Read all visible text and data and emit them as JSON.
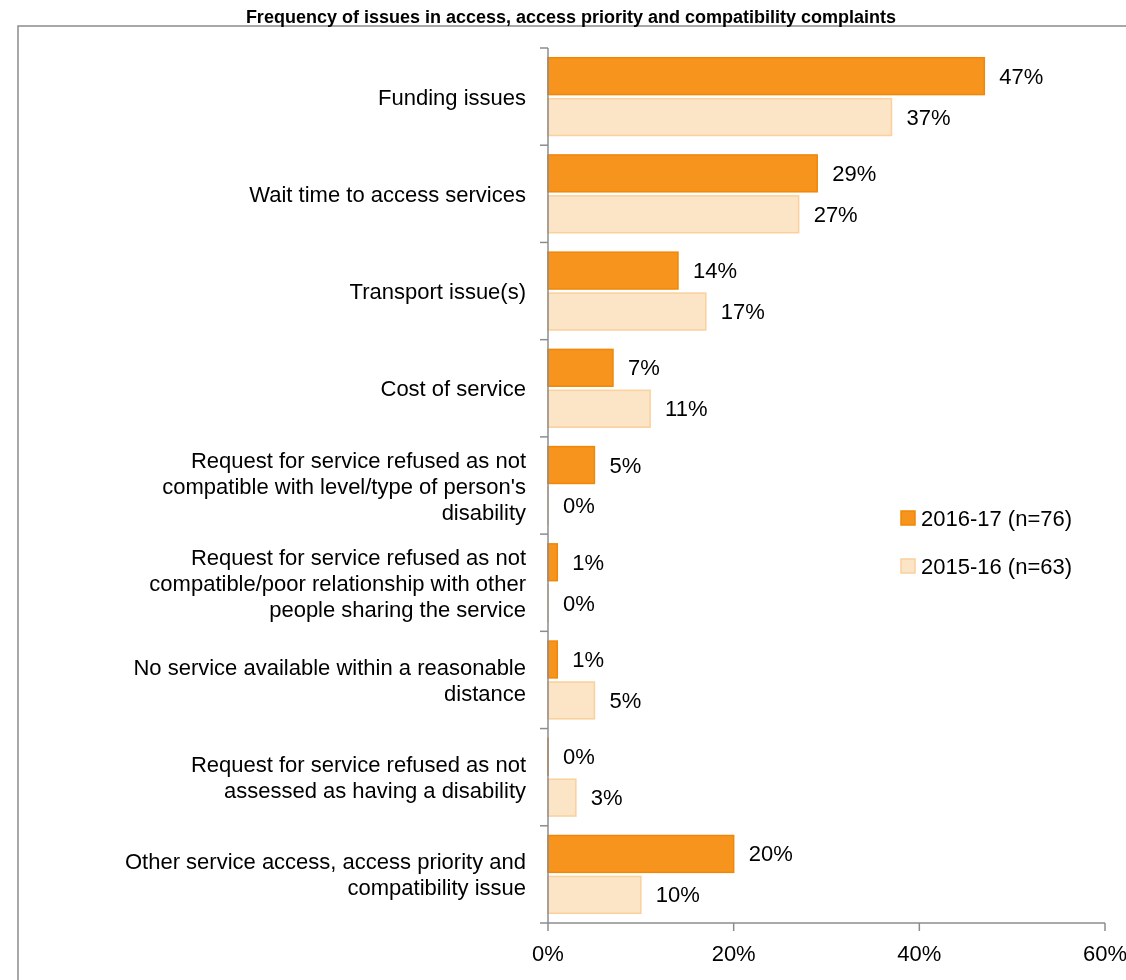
{
  "chart_data": {
    "type": "bar",
    "orientation": "horizontal",
    "title": "Frequency of issues in access, access priority and compatibility complaints",
    "categories": [
      "Funding issues",
      "Wait time to access services",
      "Transport issue(s)",
      "Cost of service",
      "Request for service refused as not compatible with level/type of person's disability",
      "Request for service refused as not compatible/poor relationship with other people sharing the service",
      "No service available within a reasonable distance",
      "Request for service refused as not assessed as having a disability",
      "Other service access, access priority and compatibility issue"
    ],
    "series": [
      {
        "name": "2016-17 (n=76)",
        "color": "#f7941d",
        "values": [
          47,
          29,
          14,
          7,
          5,
          1,
          1,
          0,
          20
        ],
        "value_labels": [
          "47%",
          "29%",
          "14%",
          "7%",
          "5%",
          "1%",
          "1%",
          "0%",
          "20%"
        ]
      },
      {
        "name": "2015-16 (n=63)",
        "color": "#fce4c6",
        "values": [
          37,
          27,
          17,
          11,
          0,
          0,
          5,
          3,
          10
        ],
        "value_labels": [
          "37%",
          "27%",
          "17%",
          "11%",
          "0%",
          "0%",
          "5%",
          "3%",
          "10%"
        ]
      }
    ],
    "xlim": [
      0,
      60
    ],
    "xticks": [
      {
        "value": 0,
        "label": "0%"
      },
      {
        "value": 20,
        "label": "20%"
      },
      {
        "value": 40,
        "label": "40%"
      },
      {
        "value": 60,
        "label": "60%"
      }
    ],
    "grid": false,
    "legend": "right"
  }
}
